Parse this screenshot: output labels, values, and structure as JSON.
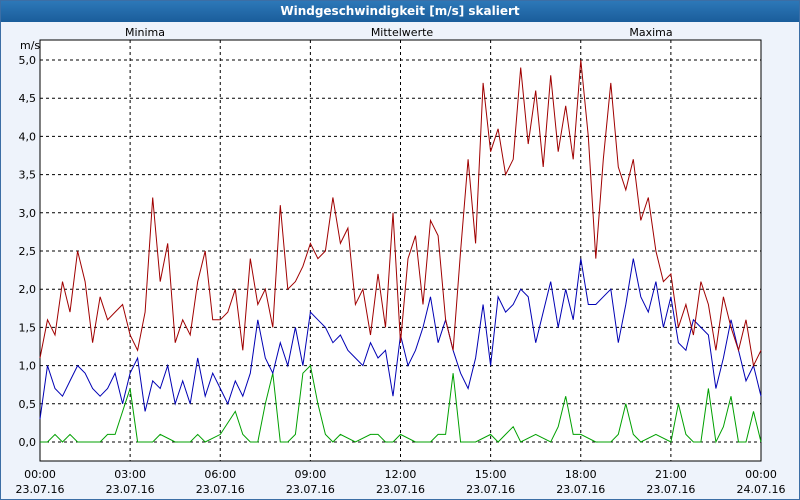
{
  "window": {
    "title": "Windgeschwindigkeit [m/s] skaliert"
  },
  "colors": {
    "minima": "#00a000",
    "mittelwerte": "#0000b4",
    "maxima": "#a00000",
    "grid": "#000000"
  },
  "chart_data": {
    "type": "line",
    "title": "Windgeschwindigkeit [m/s] skaliert",
    "ylabel": "m/s",
    "ylim": [
      0,
      5
    ],
    "xlim": [
      0,
      24
    ],
    "yticks": [
      "0,0",
      "0,5",
      "1,0",
      "1,5",
      "2,0",
      "2,5",
      "3,0",
      "3,5",
      "4,0",
      "4,5",
      "5,0"
    ],
    "xticks": [
      {
        "time": "00:00",
        "date": "23.07.16"
      },
      {
        "time": "03:00",
        "date": "23.07.16"
      },
      {
        "time": "06:00",
        "date": "23.07.16"
      },
      {
        "time": "09:00",
        "date": "23.07.16"
      },
      {
        "time": "12:00",
        "date": "23.07.16"
      },
      {
        "time": "15:00",
        "date": "23.07.16"
      },
      {
        "time": "18:00",
        "date": "23.07.16"
      },
      {
        "time": "21:00",
        "date": "23.07.16"
      },
      {
        "time": "00:00",
        "date": "24.07.16"
      }
    ],
    "grid": true,
    "legend": [
      "Minima",
      "Mittelwerte",
      "Maxima"
    ],
    "series": [
      {
        "name": "Minima",
        "x": [
          0,
          0.25,
          0.5,
          0.75,
          1,
          1.25,
          1.5,
          1.75,
          2,
          2.25,
          2.5,
          2.75,
          3,
          3.25,
          3.5,
          3.75,
          4,
          4.5,
          5,
          5.25,
          5.5,
          6,
          6.5,
          6.75,
          7,
          7.25,
          7.5,
          7.75,
          8,
          8.25,
          8.5,
          8.75,
          9,
          9.25,
          9.5,
          9.75,
          10,
          10.5,
          11,
          11.25,
          11.5,
          11.75,
          12,
          12.5,
          13,
          13.25,
          13.5,
          13.75,
          14,
          14.5,
          15,
          15.25,
          15.5,
          15.75,
          16,
          16.5,
          17,
          17.25,
          17.5,
          17.75,
          18,
          18.5,
          19,
          19.25,
          19.5,
          19.75,
          20,
          20.5,
          21,
          21.25,
          21.5,
          21.75,
          22,
          22.25,
          22.5,
          22.75,
          23,
          23.25,
          23.5,
          23.75,
          24
        ],
        "values": [
          0,
          0,
          0.1,
          0,
          0.1,
          0,
          0,
          0,
          0,
          0.1,
          0.1,
          0.4,
          0.7,
          0,
          0,
          0,
          0.1,
          0,
          0,
          0.1,
          0,
          0.1,
          0.4,
          0.1,
          0,
          0,
          0.5,
          0.9,
          0,
          0,
          0.1,
          0.9,
          1.0,
          0.5,
          0.1,
          0,
          0.1,
          0,
          0.1,
          0.1,
          0,
          0,
          0.1,
          0,
          0,
          0.1,
          0.1,
          0.9,
          0,
          0,
          0.1,
          0,
          0.1,
          0.2,
          0,
          0.1,
          0,
          0.2,
          0.6,
          0.1,
          0.1,
          0,
          0,
          0.1,
          0.5,
          0.1,
          0,
          0.1,
          0,
          0.5,
          0.1,
          0,
          0,
          0.7,
          0,
          0.2,
          0.6,
          0,
          0,
          0.4,
          0
        ]
      },
      {
        "name": "Mittelwerte",
        "x": [
          0,
          0.25,
          0.5,
          0.75,
          1,
          1.25,
          1.5,
          1.75,
          2,
          2.25,
          2.5,
          2.75,
          3,
          3.25,
          3.5,
          3.75,
          4,
          4.25,
          4.5,
          4.75,
          5,
          5.25,
          5.5,
          5.75,
          6,
          6.25,
          6.5,
          6.75,
          7,
          7.25,
          7.5,
          7.75,
          8,
          8.25,
          8.5,
          8.75,
          9,
          9.25,
          9.5,
          9.75,
          10,
          10.25,
          10.5,
          10.75,
          11,
          11.25,
          11.5,
          11.75,
          12,
          12.25,
          12.5,
          12.75,
          13,
          13.25,
          13.5,
          13.75,
          14,
          14.25,
          14.5,
          14.75,
          15,
          15.25,
          15.5,
          15.75,
          16,
          16.25,
          16.5,
          16.75,
          17,
          17.25,
          17.5,
          17.75,
          18,
          18.25,
          18.5,
          18.75,
          19,
          19.25,
          19.5,
          19.75,
          20,
          20.25,
          20.5,
          20.75,
          21,
          21.25,
          21.5,
          21.75,
          22,
          22.25,
          22.5,
          22.75,
          23,
          23.25,
          23.5,
          23.75,
          24
        ],
        "values": [
          0.3,
          1.0,
          0.7,
          0.6,
          0.8,
          1.0,
          0.9,
          0.7,
          0.6,
          0.7,
          0.9,
          0.5,
          0.9,
          1.1,
          0.4,
          0.8,
          0.7,
          1.0,
          0.5,
          0.8,
          0.5,
          1.1,
          0.6,
          0.9,
          0.7,
          0.5,
          0.8,
          0.6,
          0.9,
          1.6,
          1.1,
          0.9,
          1.3,
          1.0,
          1.5,
          1.0,
          1.7,
          1.6,
          1.5,
          1.3,
          1.4,
          1.2,
          1.1,
          1.0,
          1.3,
          1.1,
          1.2,
          0.6,
          1.4,
          1.0,
          1.2,
          1.5,
          1.9,
          1.3,
          1.6,
          1.2,
          0.9,
          0.7,
          1.1,
          1.8,
          1.0,
          1.9,
          1.7,
          1.8,
          2.0,
          1.9,
          1.3,
          1.7,
          2.1,
          1.5,
          2.0,
          1.6,
          2.4,
          1.8,
          1.8,
          1.9,
          2.0,
          1.3,
          1.8,
          2.4,
          1.9,
          1.7,
          2.1,
          1.5,
          1.9,
          1.3,
          1.2,
          1.6,
          1.5,
          1.4,
          0.7,
          1.1,
          1.6,
          1.2,
          0.8,
          1.0,
          0.6
        ]
      },
      {
        "name": "Maxima",
        "x": [
          0,
          0.25,
          0.5,
          0.75,
          1,
          1.25,
          1.5,
          1.75,
          2,
          2.25,
          2.5,
          2.75,
          3,
          3.25,
          3.5,
          3.75,
          4,
          4.25,
          4.5,
          4.75,
          5,
          5.25,
          5.5,
          5.75,
          6,
          6.25,
          6.5,
          6.75,
          7,
          7.25,
          7.5,
          7.75,
          8,
          8.25,
          8.5,
          8.75,
          9,
          9.25,
          9.5,
          9.75,
          10,
          10.25,
          10.5,
          10.75,
          11,
          11.25,
          11.5,
          11.75,
          12,
          12.25,
          12.5,
          12.75,
          13,
          13.25,
          13.5,
          13.75,
          14,
          14.25,
          14.5,
          14.75,
          15,
          15.25,
          15.5,
          15.75,
          16,
          16.25,
          16.5,
          16.75,
          17,
          17.25,
          17.5,
          17.75,
          18,
          18.25,
          18.5,
          18.75,
          19,
          19.25,
          19.5,
          19.75,
          20,
          20.25,
          20.5,
          20.75,
          21,
          21.25,
          21.5,
          21.75,
          22,
          22.25,
          22.5,
          22.75,
          23,
          23.25,
          23.5,
          23.75,
          24
        ],
        "values": [
          1.1,
          1.6,
          1.4,
          2.1,
          1.7,
          2.5,
          2.1,
          1.3,
          1.9,
          1.6,
          1.7,
          1.8,
          1.4,
          1.2,
          1.7,
          3.2,
          2.1,
          2.6,
          1.3,
          1.6,
          1.4,
          2.1,
          2.5,
          1.6,
          1.6,
          1.7,
          2.0,
          1.2,
          2.4,
          1.8,
          2.0,
          1.5,
          3.1,
          2.0,
          2.1,
          2.3,
          2.6,
          2.4,
          2.5,
          3.2,
          2.6,
          2.8,
          1.8,
          2.0,
          1.4,
          2.2,
          1.5,
          3.0,
          1.3,
          2.4,
          2.7,
          1.8,
          2.9,
          2.7,
          1.6,
          1.2,
          2.5,
          3.7,
          2.6,
          4.7,
          3.8,
          4.1,
          3.5,
          3.7,
          4.9,
          3.9,
          4.6,
          3.6,
          4.8,
          3.8,
          4.4,
          3.7,
          5.0,
          4.0,
          2.4,
          3.7,
          4.7,
          3.6,
          3.3,
          3.7,
          2.9,
          3.2,
          2.5,
          2.1,
          2.2,
          1.5,
          1.8,
          1.4,
          2.1,
          1.8,
          1.2,
          1.9,
          1.5,
          1.2,
          1.6,
          1.0,
          1.2
        ]
      }
    ]
  }
}
